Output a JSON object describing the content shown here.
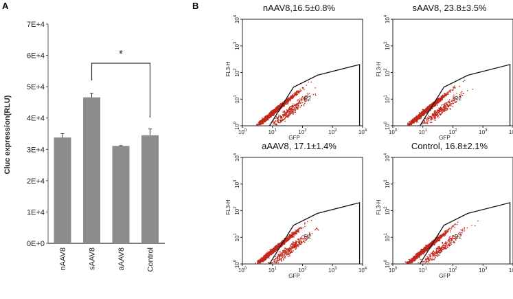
{
  "panel_labels": {
    "a": "A",
    "b": "B"
  },
  "chart_data": [
    {
      "type": "bar",
      "panel": "A",
      "ylabel": "Cluc expression(RLU)",
      "xlabel": "",
      "ylim": [
        0,
        70000
      ],
      "yticks": [
        0,
        10000,
        20000,
        30000,
        40000,
        50000,
        60000,
        70000
      ],
      "ytick_labels": [
        "0E+0",
        "1E+4",
        "2E+4",
        "3E+4",
        "4E+4",
        "5E+4",
        "6E+4",
        "7E+4"
      ],
      "categories": [
        "nAAV8",
        "sAAV8",
        "aAAV8",
        "Control"
      ],
      "values": [
        33800,
        46600,
        31100,
        34500
      ],
      "errors": [
        1200,
        1300,
        100,
        2000
      ],
      "bar_color": "#8c8c8c",
      "significance": {
        "from": "sAAV8",
        "to": "Control",
        "label": "*"
      }
    },
    {
      "type": "scatter",
      "panel": "B",
      "xlabel": "GFP",
      "ylabel": "FL3-H",
      "xscale": "log",
      "yscale": "log",
      "xlim_log10": [
        0,
        4
      ],
      "ylim_log10": [
        0,
        4
      ],
      "tick_exponents": [
        "0",
        "1",
        "2",
        "3",
        "4"
      ],
      "tick_base": "10",
      "gate_label": "R2",
      "gate_vertices_log10": [
        [
          0.9,
          0
        ],
        [
          1.7,
          1.45
        ],
        [
          2.5,
          1.9
        ],
        [
          3.9,
          2.3
        ],
        [
          3.9,
          0
        ]
      ],
      "point_color": "#c0281c",
      "plots": [
        {
          "title": "nAAV8,16.5±0.8%",
          "group": "nAAV8",
          "percent": 16.5,
          "sd": 0.8,
          "seed": 11
        },
        {
          "title": "sAAV8,  23.8±3.5%",
          "group": "sAAV8",
          "percent": 23.8,
          "sd": 3.5,
          "seed": 23
        },
        {
          "title": "aAAV8,  17.1±1.4%",
          "group": "aAAV8",
          "percent": 17.1,
          "sd": 1.4,
          "seed": 37
        },
        {
          "title": "Control, 16.8±2.1%",
          "group": "Control",
          "percent": 16.8,
          "sd": 2.1,
          "seed": 51
        }
      ]
    }
  ]
}
